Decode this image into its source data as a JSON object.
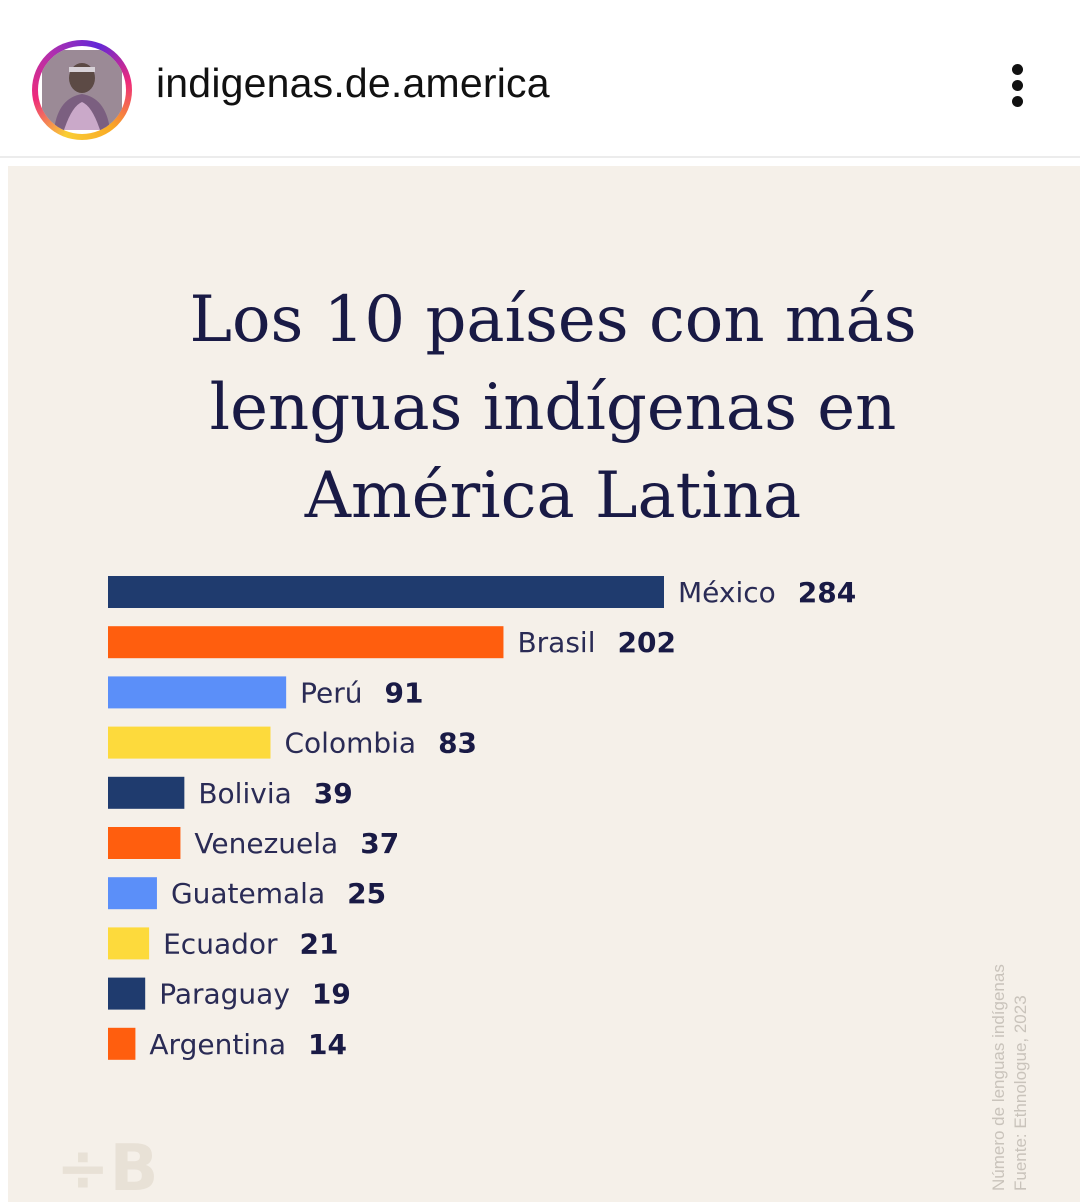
{
  "header": {
    "username": "indigenas.de.america",
    "avatar_icon": "profile-photo-icon",
    "more_icon": "more-vertical-icon"
  },
  "post": {
    "title_lines": [
      "Los 10 países con más",
      "lenguas indígenas en",
      "América Latina"
    ],
    "source_lines": [
      "Número de lenguas indígenas",
      "Fuente: Ethnologue, 2023"
    ],
    "brand_logo_text": "÷B",
    "background_color": "#f5f0e9"
  },
  "chart_data": {
    "type": "bar",
    "orientation": "horizontal",
    "title": "Los 10 países con más lenguas indígenas en América Latina",
    "categories": [
      "México",
      "Brasil",
      "Perú",
      "Colombia",
      "Bolivia",
      "Venezuela",
      "Guatemala",
      "Ecuador",
      "Paraguay",
      "Argentina"
    ],
    "values": [
      284,
      202,
      91,
      83,
      39,
      37,
      25,
      21,
      19,
      14
    ],
    "colors": [
      "#1f3b6e",
      "#ff5e0e",
      "#5b8ff9",
      "#fdda3c",
      "#1f3b6e",
      "#ff5e0e",
      "#5b8ff9",
      "#fdda3c",
      "#1f3b6e",
      "#ff5e0e"
    ],
    "label_color": "#2a2b55",
    "value_color": "#191a45",
    "xlabel": "",
    "ylabel": "",
    "grid": false,
    "legend": "none"
  }
}
